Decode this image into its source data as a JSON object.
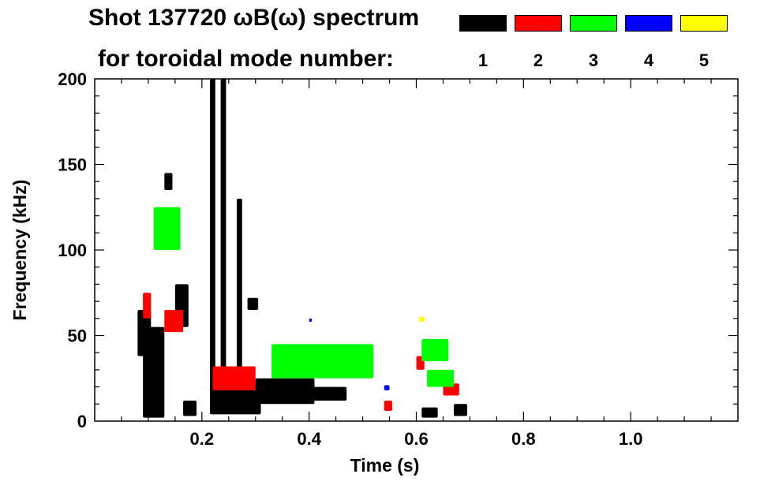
{
  "chart_data": {
    "type": "heatmap",
    "title_line1": "Shot 137720 ωB(ω) spectrum",
    "title_line2": "for toroidal mode number:",
    "xlabel": "Time (s)",
    "ylabel": "Frequency (kHz)",
    "xlim": [
      0,
      1.2
    ],
    "ylim": [
      0,
      200
    ],
    "xticks": [
      {
        "value": 0.2,
        "label": "0.2"
      },
      {
        "value": 0.4,
        "label": "0.4"
      },
      {
        "value": 0.6,
        "label": "0.6"
      },
      {
        "value": 0.8,
        "label": "0.8"
      },
      {
        "value": 1.0,
        "label": "1.0"
      }
    ],
    "yticks": [
      {
        "value": 0,
        "label": "0"
      },
      {
        "value": 50,
        "label": "50"
      },
      {
        "value": 100,
        "label": "100"
      },
      {
        "value": 150,
        "label": "150"
      },
      {
        "value": 200,
        "label": "200"
      }
    ],
    "legend": [
      {
        "mode": "1",
        "color": "#000000"
      },
      {
        "mode": "2",
        "color": "#ff0000"
      },
      {
        "mode": "3",
        "color": "#00ff00"
      },
      {
        "mode": "4",
        "color": "#0000ff"
      },
      {
        "mode": "5",
        "color": "#ffff00"
      }
    ],
    "series": [
      {
        "mode": "1",
        "color": "#000000",
        "regions": [
          {
            "t": [
              0.08,
              0.105
            ],
            "f": [
              38,
              65
            ]
          },
          {
            "t": [
              0.09,
              0.13
            ],
            "f": [
              2,
              55
            ]
          },
          {
            "t": [
              0.165,
              0.19
            ],
            "f": [
              3,
              12
            ]
          },
          {
            "t": [
              0.215,
              0.31
            ],
            "f": [
              4,
              22
            ]
          },
          {
            "t": [
              0.3,
              0.41
            ],
            "f": [
              10,
              25
            ]
          },
          {
            "t": [
              0.4,
              0.47
            ],
            "f": [
              12,
              20
            ]
          },
          {
            "t": [
              0.61,
              0.64
            ],
            "f": [
              2,
              8
            ]
          },
          {
            "t": [
              0.67,
              0.695
            ],
            "f": [
              3,
              10
            ]
          },
          {
            "t": [
              0.215,
              0.225
            ],
            "f": [
              20,
              200
            ]
          },
          {
            "t": [
              0.235,
              0.245
            ],
            "f": [
              20,
              200
            ]
          },
          {
            "t": [
              0.265,
              0.275
            ],
            "f": [
              20,
              130
            ]
          },
          {
            "t": [
              0.285,
              0.305
            ],
            "f": [
              65,
              72
            ]
          },
          {
            "t": [
              0.13,
              0.145
            ],
            "f": [
              135,
              145
            ]
          },
          {
            "t": [
              0.15,
              0.175
            ],
            "f": [
              55,
              80
            ]
          }
        ]
      },
      {
        "mode": "2",
        "color": "#ff0000",
        "regions": [
          {
            "t": [
              0.09,
              0.105
            ],
            "f": [
              60,
              75
            ]
          },
          {
            "t": [
              0.13,
              0.165
            ],
            "f": [
              52,
              65
            ]
          },
          {
            "t": [
              0.22,
              0.3
            ],
            "f": [
              18,
              32
            ]
          },
          {
            "t": [
              0.6,
              0.615
            ],
            "f": [
              30,
              38
            ]
          },
          {
            "t": [
              0.54,
              0.555
            ],
            "f": [
              6,
              12
            ]
          },
          {
            "t": [
              0.65,
              0.68
            ],
            "f": [
              15,
              22
            ]
          }
        ]
      },
      {
        "mode": "3",
        "color": "#00ff00",
        "regions": [
          {
            "t": [
              0.33,
              0.52
            ],
            "f": [
              25,
              45
            ]
          },
          {
            "t": [
              0.61,
              0.66
            ],
            "f": [
              35,
              48
            ]
          },
          {
            "t": [
              0.62,
              0.67
            ],
            "f": [
              20,
              30
            ]
          },
          {
            "t": [
              0.11,
              0.16
            ],
            "f": [
              100,
              125
            ]
          }
        ]
      },
      {
        "mode": "4",
        "color": "#0000ff",
        "regions": [
          {
            "t": [
              0.54,
              0.55
            ],
            "f": [
              18,
              21
            ]
          },
          {
            "t": [
              0.4,
              0.405
            ],
            "f": [
              58,
              60
            ]
          }
        ]
      },
      {
        "mode": "5",
        "color": "#ffff00",
        "regions": [
          {
            "t": [
              0.605,
              0.615
            ],
            "f": [
              58,
              61
            ]
          }
        ]
      }
    ]
  }
}
